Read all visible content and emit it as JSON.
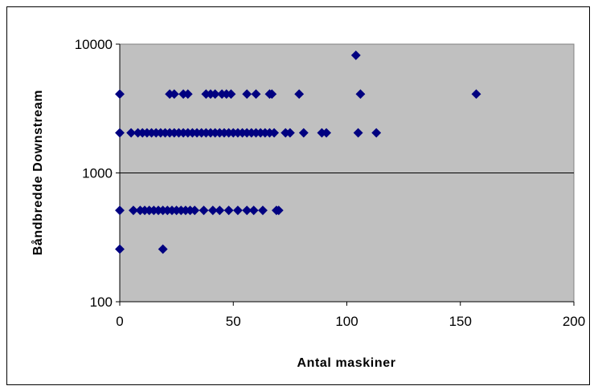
{
  "chart_data": {
    "type": "scatter",
    "title": "",
    "xlabel": "Antal maskiner",
    "ylabel": "Båndbredde Downstream",
    "xlim": [
      0,
      200
    ],
    "ylim": [
      100,
      10000
    ],
    "yscale": "log",
    "x_ticks": [
      0,
      50,
      100,
      150,
      200
    ],
    "x_tick_labels": [
      "0",
      "50",
      "100",
      "150",
      "200"
    ],
    "y_ticks": [
      100,
      1000,
      10000
    ],
    "y_tick_labels": [
      "100",
      "1000",
      "10000"
    ],
    "grid": "major horizontal lines",
    "legend": "none",
    "colors": {
      "plot_area": "#c0c0c0",
      "marker": "#000080",
      "gridline": "#000000"
    },
    "marker": "diamond",
    "series": [
      {
        "points": [
          [
            104,
            8192
          ],
          [
            0,
            4096
          ],
          [
            22,
            4096
          ],
          [
            24,
            4096
          ],
          [
            28,
            4096
          ],
          [
            30,
            4096
          ],
          [
            38,
            4096
          ],
          [
            40,
            4096
          ],
          [
            42,
            4096
          ],
          [
            45,
            4096
          ],
          [
            47,
            4096
          ],
          [
            49,
            4096
          ],
          [
            56,
            4096
          ],
          [
            60,
            4096
          ],
          [
            66,
            4096
          ],
          [
            67,
            4096
          ],
          [
            79,
            4096
          ],
          [
            106,
            4096
          ],
          [
            157,
            4096
          ],
          [
            0,
            2048
          ],
          [
            5,
            2048
          ],
          [
            8,
            2048
          ],
          [
            10,
            2048
          ],
          [
            12,
            2048
          ],
          [
            14,
            2048
          ],
          [
            16,
            2048
          ],
          [
            18,
            2048
          ],
          [
            20,
            2048
          ],
          [
            22,
            2048
          ],
          [
            24,
            2048
          ],
          [
            26,
            2048
          ],
          [
            28,
            2048
          ],
          [
            30,
            2048
          ],
          [
            32,
            2048
          ],
          [
            34,
            2048
          ],
          [
            36,
            2048
          ],
          [
            38,
            2048
          ],
          [
            40,
            2048
          ],
          [
            42,
            2048
          ],
          [
            44,
            2048
          ],
          [
            46,
            2048
          ],
          [
            48,
            2048
          ],
          [
            50,
            2048
          ],
          [
            52,
            2048
          ],
          [
            54,
            2048
          ],
          [
            56,
            2048
          ],
          [
            58,
            2048
          ],
          [
            60,
            2048
          ],
          [
            62,
            2048
          ],
          [
            64,
            2048
          ],
          [
            66,
            2048
          ],
          [
            68,
            2048
          ],
          [
            73,
            2048
          ],
          [
            75,
            2048
          ],
          [
            81,
            2048
          ],
          [
            89,
            2048
          ],
          [
            91,
            2048
          ],
          [
            105,
            2048
          ],
          [
            113,
            2048
          ],
          [
            0,
            512
          ],
          [
            6,
            512
          ],
          [
            9,
            512
          ],
          [
            11,
            512
          ],
          [
            13,
            512
          ],
          [
            15,
            512
          ],
          [
            17,
            512
          ],
          [
            19,
            512
          ],
          [
            21,
            512
          ],
          [
            23,
            512
          ],
          [
            25,
            512
          ],
          [
            27,
            512
          ],
          [
            29,
            512
          ],
          [
            31,
            512
          ],
          [
            33,
            512
          ],
          [
            37,
            512
          ],
          [
            41,
            512
          ],
          [
            44,
            512
          ],
          [
            48,
            512
          ],
          [
            52,
            512
          ],
          [
            56,
            512
          ],
          [
            59,
            512
          ],
          [
            63,
            512
          ],
          [
            69,
            512
          ],
          [
            70,
            512
          ],
          [
            0,
            256
          ],
          [
            19,
            256
          ]
        ]
      }
    ]
  }
}
